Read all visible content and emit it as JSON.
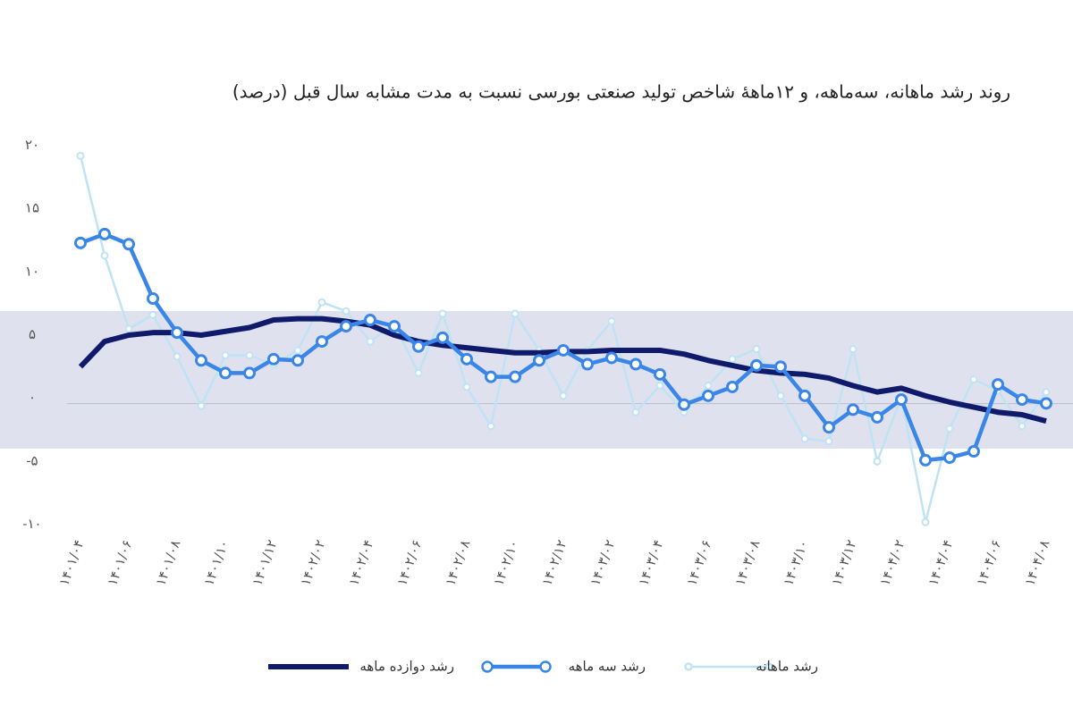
{
  "chart_data": {
    "type": "line",
    "title": "روند رشد ماهانه، سه‌ماهه، و ۱۲ماههٔ شاخص تولید صنعتی بورسی نسبت به مدت مشابه سال قبل (درصد)",
    "categories": [
      "۱۴۰۱/۰۴",
      null,
      "۱۴۰۱/۰۶",
      null,
      "۱۴۰۱/۰۸",
      null,
      "۱۴۰۱/۱۰",
      null,
      "۱۴۰۱/۱۲",
      null,
      "۱۴۰۲/۰۲",
      null,
      "۱۴۰۲/۰۴",
      null,
      "۱۴۰۲/۰۶",
      null,
      "۱۴۰۲/۰۸",
      null,
      "۱۴۰۲/۱۰",
      null,
      "۱۴۰۲/۱۲",
      null,
      "۱۴۰۳/۰۲",
      null,
      "۱۴۰۳/۰۴",
      null,
      "۱۴۰۳/۰۶",
      null,
      "۱۴۰۳/۰۸",
      null,
      "۱۴۰۳/۱۰",
      null,
      "۱۴۰۳/۱۲",
      null,
      "۱۴۰۴/۰۲",
      null,
      "۱۴۰۴/۰۴",
      null,
      "۱۴۰۴/۰۶",
      null,
      "۱۴۰۴/۰۸"
    ],
    "series": [
      {
        "name": "رشد ماهانه",
        "color": "#bfe3f5",
        "values": [
          19.2,
          11.3,
          5.5,
          6.6,
          3.3,
          -0.6,
          3.4,
          3.4,
          2.7,
          3.8,
          7.6,
          6.9,
          4.5,
          5.9,
          2.0,
          6.7,
          0.9,
          -2.2,
          6.7,
          3.8,
          0.2,
          3.8,
          6.1,
          -1.1,
          1.0,
          -1.1,
          1.0,
          3.1,
          3.9,
          0.2,
          -3.2,
          -3.4,
          3.9,
          -5.0,
          0.1,
          -9.8,
          -2.4,
          1.5,
          0.6,
          -2.2,
          0.5
        ]
      },
      {
        "name": "رشد دوازده ماهه",
        "color": "#0f1a6b",
        "values": [
          2.5,
          4.5,
          5.0,
          5.2,
          5.2,
          5.0,
          5.3,
          5.6,
          6.2,
          6.3,
          6.3,
          6.1,
          5.8,
          5.0,
          4.5,
          4.2,
          4.0,
          3.8,
          3.6,
          3.6,
          3.7,
          3.7,
          3.8,
          3.8,
          3.8,
          3.5,
          3.0,
          2.6,
          2.2,
          2.0,
          1.9,
          1.6,
          1.0,
          0.5,
          0.8,
          0.2,
          -0.3,
          -0.7,
          -1.1,
          -1.3,
          -1.8
        ]
      },
      {
        "name": "رشد سه ماهه",
        "color": "#3a86e8",
        "values": [
          12.3,
          13.0,
          12.2,
          7.9,
          5.2,
          3.0,
          2.0,
          2.0,
          3.1,
          3.0,
          4.5,
          5.7,
          6.2,
          5.7,
          4.1,
          4.8,
          3.1,
          1.7,
          1.7,
          3.0,
          3.8,
          2.7,
          3.2,
          2.7,
          1.9,
          -0.5,
          0.2,
          0.9,
          2.6,
          2.5,
          0.2,
          -2.3,
          -0.9,
          -1.5,
          -0.1,
          -4.9,
          -4.7,
          -4.2,
          1.1,
          -0.1,
          -0.4
        ]
      }
    ],
    "ylim": [
      -10,
      20
    ],
    "yticks": [
      {
        "value": -10,
        "label": "-۱۰"
      },
      {
        "value": -5,
        "label": "-۵"
      },
      {
        "value": 0,
        "label": "۰"
      },
      {
        "value": 5,
        "label": "۵"
      },
      {
        "value": 10,
        "label": "۱۰"
      },
      {
        "value": 15,
        "label": "۱۵"
      },
      {
        "value": 20,
        "label": "۲۰"
      }
    ]
  }
}
